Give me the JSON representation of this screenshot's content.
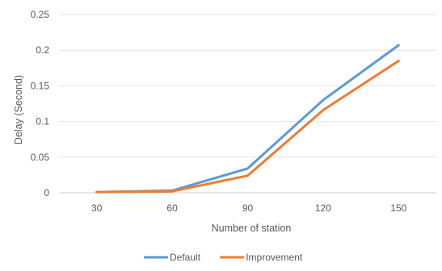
{
  "chart_data": {
    "type": "line",
    "title": "",
    "xlabel": "Number  of station",
    "ylabel": "Delay (Second)",
    "categories": [
      "30",
      "60",
      "90",
      "120",
      "150"
    ],
    "y_ticks": [
      "0",
      "0.05",
      "0.1",
      "0.15",
      "0.2",
      "0.25"
    ],
    "ylim": [
      0,
      0.25
    ],
    "grid": true,
    "legend_position": "bottom",
    "series": [
      {
        "name": "Default",
        "color": "#5B9BD5",
        "values": [
          0.001,
          0.003,
          0.034,
          0.13,
          0.207
        ]
      },
      {
        "name": "Improvement",
        "color": "#ED7D31",
        "values": [
          0.001,
          0.002,
          0.024,
          0.116,
          0.185
        ]
      }
    ]
  }
}
